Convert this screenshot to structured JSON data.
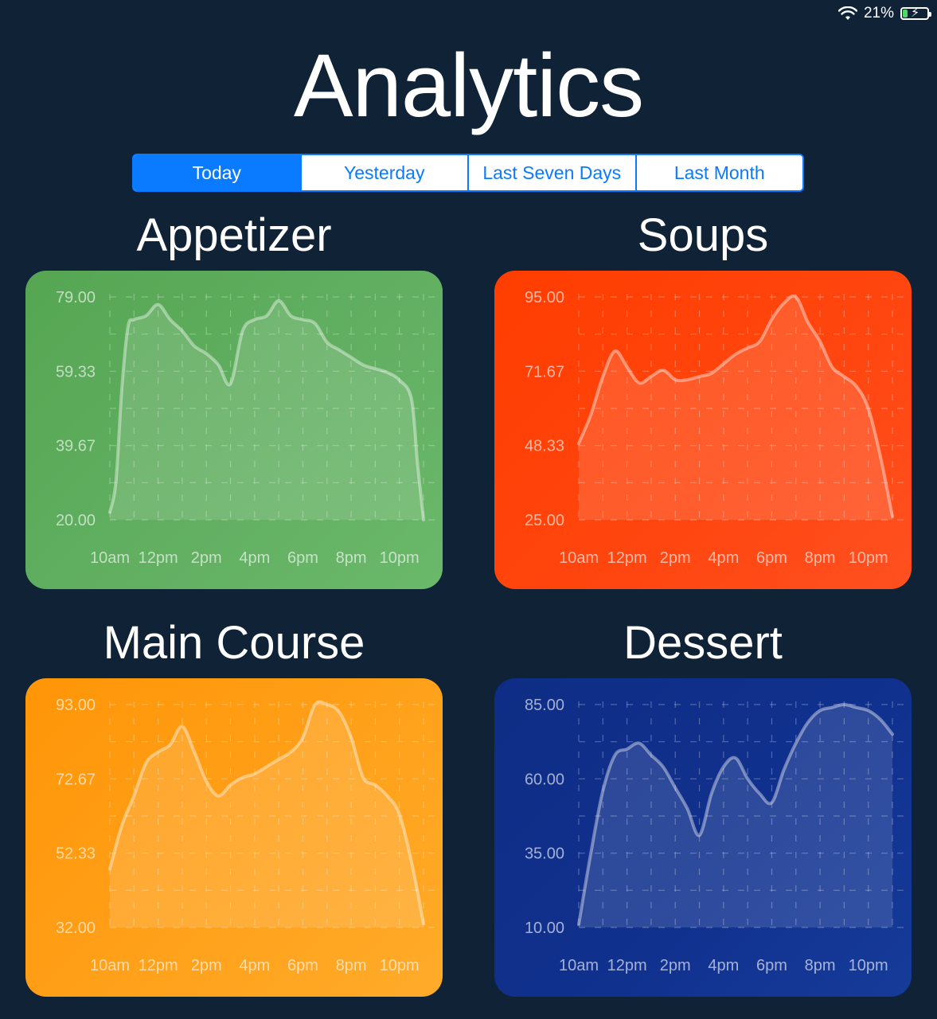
{
  "status": {
    "battery_text": "21%",
    "battery_level": 0.21
  },
  "title": "Analytics",
  "tabs": [
    {
      "label": "Today",
      "active": true
    },
    {
      "label": "Yesterday",
      "active": false
    },
    {
      "label": "Last Seven Days",
      "active": false
    },
    {
      "label": "Last Month",
      "active": false
    }
  ],
  "chart_data": [
    {
      "type": "area",
      "title": "Appetizer",
      "color": "#5aaa58",
      "xticks": [
        "10am",
        "12pm",
        "2pm",
        "4pm",
        "6pm",
        "8pm",
        "10pm"
      ],
      "yticks": [
        "20.00",
        "39.67",
        "59.33",
        "79.00"
      ],
      "ylim": [
        20,
        79
      ],
      "x": [
        10,
        10.25,
        10.5,
        10.75,
        11,
        11.5,
        12,
        12.5,
        13,
        13.5,
        14,
        14.5,
        15,
        15.5,
        16,
        16.5,
        17,
        17.5,
        18,
        18.5,
        19,
        19.5,
        20,
        20.5,
        21,
        21.5,
        22,
        22.5,
        22.75,
        23
      ],
      "y": [
        22,
        30,
        55,
        71,
        73,
        74,
        77,
        73,
        70,
        66,
        64,
        61,
        56,
        70,
        73,
        74,
        78,
        74,
        73,
        72,
        67,
        65,
        63,
        61,
        60,
        59,
        57,
        52,
        35,
        20
      ]
    },
    {
      "type": "area",
      "title": "Soups",
      "color": "#ff4206",
      "xticks": [
        "10am",
        "12pm",
        "2pm",
        "4pm",
        "6pm",
        "8pm",
        "10pm"
      ],
      "yticks": [
        "25.00",
        "48.33",
        "71.67",
        "95.00"
      ],
      "ylim": [
        25,
        95
      ],
      "x": [
        10,
        10.5,
        11,
        11.5,
        12,
        12.5,
        13,
        13.5,
        14,
        14.5,
        15,
        15.5,
        16,
        16.5,
        17,
        17.5,
        18,
        18.5,
        19,
        19.5,
        20,
        20.5,
        21,
        21.5,
        22,
        22.5,
        23
      ],
      "y": [
        49,
        58,
        70,
        78,
        73,
        68,
        70,
        72,
        69,
        69,
        70,
        71,
        74,
        77,
        79,
        81,
        88,
        93,
        95,
        87,
        81,
        73,
        70,
        67,
        60,
        45,
        26
      ]
    },
    {
      "type": "area",
      "title": "Main Course",
      "color": "#ff9a10",
      "xticks": [
        "10am",
        "12pm",
        "2pm",
        "4pm",
        "6pm",
        "8pm",
        "10pm"
      ],
      "yticks": [
        "32.00",
        "52.33",
        "72.67",
        "93.00"
      ],
      "ylim": [
        32,
        93
      ],
      "x": [
        10,
        10.5,
        11,
        11.5,
        12,
        12.5,
        13,
        13.5,
        14,
        14.5,
        15,
        15.5,
        16,
        16.5,
        17,
        17.5,
        18,
        18.5,
        19,
        19.5,
        20,
        20.5,
        21,
        21.5,
        22,
        22.5,
        23
      ],
      "y": [
        48,
        60,
        68,
        77,
        80,
        82,
        87,
        80,
        72,
        68,
        71,
        73,
        74,
        76,
        78,
        80,
        84,
        93,
        93,
        91,
        84,
        73,
        71,
        68,
        63,
        50,
        33
      ]
    },
    {
      "type": "area",
      "title": "Dessert",
      "color": "#11318f",
      "xticks": [
        "10am",
        "12pm",
        "2pm",
        "4pm",
        "6pm",
        "8pm",
        "10pm"
      ],
      "yticks": [
        "10.00",
        "35.00",
        "60.00",
        "85.00"
      ],
      "ylim": [
        10,
        85
      ],
      "x": [
        10,
        10.5,
        11,
        11.5,
        12,
        12.5,
        13,
        13.5,
        14,
        14.5,
        15,
        15.5,
        16,
        16.5,
        17,
        17.5,
        18,
        18.5,
        19,
        19.5,
        20,
        20.5,
        21,
        21.5,
        22,
        22.5,
        23
      ],
      "y": [
        11,
        35,
        56,
        68,
        70,
        72,
        68,
        64,
        57,
        50,
        41,
        55,
        64,
        67,
        60,
        55,
        52,
        63,
        72,
        79,
        83,
        84,
        85,
        84,
        83,
        80,
        75
      ]
    }
  ]
}
